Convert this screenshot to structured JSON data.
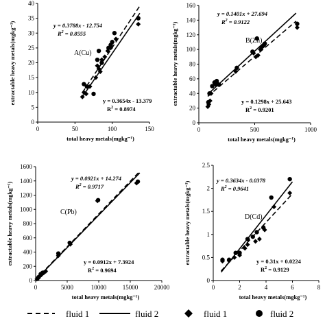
{
  "chart_data": [
    {
      "type": "scatter",
      "panel_label": "A(Cu)",
      "xlabel": "total heavy metals(mgkg⁻¹)",
      "ylabel": "extractable heavy metals(mgkg⁻¹)",
      "xlim": [
        0,
        150
      ],
      "ylim": [
        0,
        40
      ],
      "xticks": [
        0,
        50,
        100,
        150
      ],
      "yticks": [
        0,
        5,
        10,
        15,
        20,
        25,
        30,
        35,
        40
      ],
      "xtick_labels": [
        "0",
        "50",
        "100",
        "150"
      ],
      "ytick_labels": [
        "0",
        "5",
        "10",
        "15",
        "20",
        "25",
        "30",
        "35",
        "40"
      ],
      "series": [
        {
          "name": "fluid 1",
          "marker": "diamond",
          "points": [
            [
              60,
              8.5
            ],
            [
              62,
              10
            ],
            [
              65,
              9.5
            ],
            [
              70,
              12
            ],
            [
              78,
              15
            ],
            [
              80,
              19
            ],
            [
              82,
              18
            ],
            [
              84,
              17
            ],
            [
              86,
              21
            ],
            [
              90,
              22
            ],
            [
              94,
              24
            ],
            [
              98,
              25
            ],
            [
              100,
              27
            ],
            [
              105,
              28
            ],
            [
              135,
              33
            ]
          ]
        },
        {
          "name": "fluid 2",
          "marker": "circle",
          "points": [
            [
              62,
              12.8
            ],
            [
              66,
              12
            ],
            [
              75,
              9.5
            ],
            [
              80,
              21
            ],
            [
              82,
              24
            ],
            [
              86,
              20
            ],
            [
              95,
              25
            ],
            [
              98,
              26
            ],
            [
              100,
              27
            ],
            [
              103,
              30
            ],
            [
              135,
              35
            ]
          ]
        }
      ],
      "fits": [
        {
          "series": "fluid 1",
          "eq": "y = 0.3654x - 13.379",
          "r2_prefix": "R",
          "r2_exp": "2",
          "r2_value": " = 0.8974",
          "slope": 0.3654,
          "intercept": -13.379,
          "x_range": [
            60,
            137
          ],
          "style": "solid"
        },
        {
          "series": "fluid 2",
          "eq": "y = 0.3788x - 12.754",
          "r2_prefix": "R",
          "r2_exp": "2",
          "r2_value": " = 0.8555",
          "slope": 0.3788,
          "intercept": -12.754,
          "x_range": [
            60,
            137
          ],
          "style": "dashed"
        }
      ]
    },
    {
      "type": "scatter",
      "panel_label": "B(Zn)",
      "xlabel": "total heavy metals(mgkg⁻¹)",
      "ylabel": "extractable heavy metals(mgkg⁻¹)",
      "xlim": [
        0,
        1000
      ],
      "ylim": [
        0,
        160
      ],
      "xticks": [
        0,
        500,
        1000
      ],
      "yticks": [
        0,
        20,
        40,
        60,
        80,
        100,
        120,
        140,
        160
      ],
      "xtick_labels": [
        "0",
        "500",
        "1000"
      ],
      "ytick_labels": [
        "0",
        "20",
        "40",
        "60",
        "80",
        "100",
        "120",
        "140",
        "160"
      ],
      "series": [
        {
          "name": "fluid 1",
          "marker": "diamond",
          "points": [
            [
              80,
              22
            ],
            [
              90,
              25
            ],
            [
              100,
              30
            ],
            [
              110,
              40
            ],
            [
              150,
              52
            ],
            [
              160,
              55
            ],
            [
              330,
              70
            ],
            [
              490,
              95
            ],
            [
              510,
              90
            ],
            [
              530,
              92
            ],
            [
              550,
              100
            ],
            [
              580,
              105
            ],
            [
              880,
              130
            ]
          ]
        },
        {
          "name": "fluid 2",
          "marker": "circle",
          "points": [
            [
              85,
              28
            ],
            [
              95,
              40
            ],
            [
              120,
              50
            ],
            [
              140,
              55
            ],
            [
              160,
              57
            ],
            [
              180,
              52
            ],
            [
              340,
              75
            ],
            [
              480,
              97
            ],
            [
              520,
              115
            ],
            [
              560,
              103
            ],
            [
              590,
              108
            ],
            [
              880,
              135
            ]
          ]
        }
      ],
      "fits": [
        {
          "series": "fluid 1",
          "eq": "y = 0.1298x + 25.643",
          "r2_prefix": "R",
          "r2_exp": "2",
          "r2_value": " = 0.9201",
          "slope": 0.1298,
          "intercept": 25.643,
          "x_range": [
            80,
            870
          ],
          "style": "dashed"
        },
        {
          "series": "fluid 2",
          "eq": "y = 0.1401x + 27.694",
          "r2_prefix": "R",
          "r2_exp": "2",
          "r2_value": " = 0.9122",
          "slope": 0.1401,
          "intercept": 27.694,
          "x_range": [
            80,
            870
          ],
          "style": "solid"
        }
      ]
    },
    {
      "type": "scatter",
      "panel_label": "C(Pb)",
      "xlabel": "total heavy metals(mgkg⁻¹)",
      "ylabel": "extractable heavy metals(mgkg⁻¹)",
      "xlim": [
        0,
        20000
      ],
      "ylim": [
        0,
        1600
      ],
      "xticks": [
        0,
        5000,
        10000,
        15000,
        20000
      ],
      "yticks": [
        0,
        200,
        400,
        600,
        800,
        1000,
        1200,
        1400,
        1600
      ],
      "xtick_labels": [
        "0",
        "5000",
        "10000",
        "15000",
        "20000"
      ],
      "ytick_labels": [
        "0",
        "200",
        "400",
        "600",
        "800",
        "1000",
        "1200",
        "1400",
        "1600"
      ],
      "series": [
        {
          "name": "fluid 1",
          "marker": "diamond",
          "points": [
            [
              200,
              20
            ],
            [
              400,
              40
            ],
            [
              600,
              60
            ],
            [
              900,
              80
            ],
            [
              1300,
              110
            ],
            [
              1600,
              130
            ],
            [
              3600,
              350
            ],
            [
              5500,
              510
            ],
            [
              9800,
              1120
            ],
            [
              16000,
              1370
            ]
          ]
        },
        {
          "name": "fluid 2",
          "marker": "circle",
          "points": [
            [
              300,
              30
            ],
            [
              500,
              50
            ],
            [
              800,
              90
            ],
            [
              1100,
              110
            ],
            [
              3600,
              380
            ],
            [
              5400,
              530
            ],
            [
              9900,
              1130
            ],
            [
              16200,
              1390
            ]
          ]
        }
      ],
      "fits": [
        {
          "series": "fluid 1",
          "eq": "y = 0.0912x + 7.3924",
          "r2_prefix": "R",
          "r2_exp": "2",
          "r2_value": " = 0.9694",
          "slope": 0.0912,
          "intercept": 7.3924,
          "x_range": [
            0,
            16500
          ],
          "style": "solid"
        },
        {
          "series": "fluid 2",
          "eq": "y = 0.0921x + 14.274",
          "r2_prefix": "R",
          "r2_exp": "2",
          "r2_value": " = 0.9717",
          "slope": 0.0921,
          "intercept": 14.274,
          "x_range": [
            0,
            16500
          ],
          "style": "dashed"
        }
      ]
    },
    {
      "type": "scatter",
      "panel_label": "D(Cd)",
      "xlabel": "total heavy metals(mgkg⁻¹)",
      "ylabel": "extractable heavy metals(mgkg⁻¹)",
      "xlim": [
        0,
        8
      ],
      "ylim": [
        0,
        2.5
      ],
      "xticks": [
        0,
        2,
        4,
        6,
        8
      ],
      "yticks": [
        0,
        0.5,
        1,
        1.5,
        2,
        2.5
      ],
      "xtick_labels": [
        "0",
        "2",
        "4",
        "6",
        "8"
      ],
      "ytick_labels": [
        "0",
        "0.5",
        "1",
        "1.5",
        "2",
        "2.5"
      ],
      "series": [
        {
          "name": "fluid 1",
          "marker": "diamond",
          "points": [
            [
              0.7,
              0.42
            ],
            [
              1.2,
              0.43
            ],
            [
              1.6,
              0.5
            ],
            [
              2.0,
              0.55
            ],
            [
              2.4,
              0.7
            ],
            [
              2.6,
              0.78
            ],
            [
              3.2,
              0.85
            ],
            [
              3.5,
              0.9
            ],
            [
              3.9,
              1.1
            ],
            [
              4.6,
              1.6
            ],
            [
              5.8,
              1.9
            ]
          ]
        },
        {
          "name": "fluid 2",
          "marker": "circle",
          "points": [
            [
              0.7,
              0.45
            ],
            [
              1.2,
              0.45
            ],
            [
              1.7,
              0.6
            ],
            [
              2.0,
              0.6
            ],
            [
              2.6,
              0.9
            ],
            [
              3.0,
              0.95
            ],
            [
              3.3,
              1.05
            ],
            [
              3.8,
              1.15
            ],
            [
              4.4,
              1.8
            ],
            [
              5.8,
              2.2
            ]
          ]
        }
      ],
      "fits": [
        {
          "series": "fluid 1",
          "eq": "y = 0.31x + 0.0224",
          "r2_prefix": "R",
          "r2_exp": "2",
          "r2_value": " = 0.9129",
          "slope": 0.31,
          "intercept": 0.0224,
          "x_range": [
            0.6,
            6.0
          ],
          "style": "dashed"
        },
        {
          "series": "fluid 2",
          "eq": "y = 0.3634x - 0.0378",
          "r2_prefix": "R",
          "r2_exp": "2",
          "r2_value": " = 0.9641",
          "slope": 0.3634,
          "intercept": -0.0378,
          "x_range": [
            0.6,
            6.0
          ],
          "style": "solid"
        }
      ]
    }
  ],
  "legend": [
    {
      "label": "fluid 1",
      "symbol": "dashed-line"
    },
    {
      "label": "fluid 2",
      "symbol": "solid-line"
    },
    {
      "label": "fluid 1",
      "symbol": "diamond"
    },
    {
      "label": "fluid 2",
      "symbol": "circle"
    }
  ],
  "colors": {
    "ink": "#000000",
    "background": "#ffffff"
  }
}
